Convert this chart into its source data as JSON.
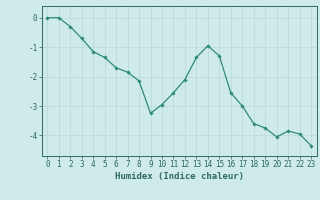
{
  "x": [
    0,
    1,
    2,
    3,
    4,
    5,
    6,
    7,
    8,
    9,
    10,
    11,
    12,
    13,
    14,
    15,
    16,
    17,
    18,
    19,
    20,
    21,
    22,
    23
  ],
  "y": [
    0.0,
    0.0,
    -0.3,
    -0.7,
    -1.15,
    -1.35,
    -1.7,
    -1.85,
    -2.15,
    -3.25,
    -2.95,
    -2.55,
    -2.1,
    -1.35,
    -0.95,
    -1.3,
    -2.55,
    -3.0,
    -3.6,
    -3.75,
    -4.05,
    -3.85,
    -3.95,
    -4.35
  ],
  "line_color": "#2e8b7a",
  "marker": "D",
  "marker_size": 1.8,
  "bg_color": "#ceeaea",
  "grid_color": "#b8d8d8",
  "xlabel": "Humidex (Indice chaleur)",
  "xlim": [
    -0.5,
    23.5
  ],
  "ylim": [
    -4.7,
    0.4
  ],
  "yticks": [
    0,
    -1,
    -2,
    -3,
    -4
  ],
  "xticks": [
    0,
    1,
    2,
    3,
    4,
    5,
    6,
    7,
    8,
    9,
    10,
    11,
    12,
    13,
    14,
    15,
    16,
    17,
    18,
    19,
    20,
    21,
    22,
    23
  ],
  "tick_color": "#2e6b5a",
  "axis_color": "#2e6b5a",
  "label_fontsize": 6.5,
  "tick_fontsize": 5.5
}
